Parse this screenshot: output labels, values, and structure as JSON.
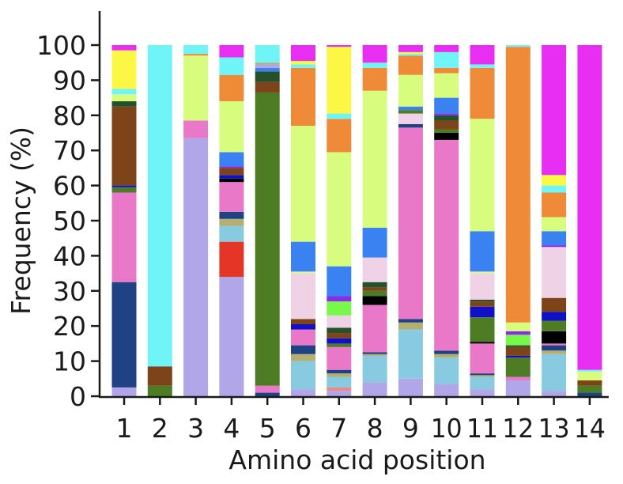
{
  "chart_data": {
    "type": "bar",
    "stacked": true,
    "title": "",
    "xlabel": "Amino acid position",
    "ylabel": "Frequency (%)",
    "ylim": [
      0,
      100
    ],
    "yticks": [
      0,
      10,
      20,
      30,
      40,
      50,
      60,
      70,
      80,
      90,
      100
    ],
    "grid": false,
    "legend": null,
    "categories": [
      "1",
      "2",
      "3",
      "4",
      "5",
      "6",
      "7",
      "8",
      "9",
      "10",
      "11",
      "12",
      "13",
      "14"
    ],
    "palette": {
      "lavender": "#b0a6e8",
      "lightblue": "#88cadf",
      "tan": "#b3ae72",
      "navy": "#1e4283",
      "salmon": "#e98a8a",
      "red": "#e53527",
      "pink": "#ea78c8",
      "black": "#000000",
      "green": "#4d7c24",
      "darkblue": "#1010c8",
      "brown": "#7c4418",
      "darkgreen": "#25502c",
      "purple": "#8a2be8",
      "palepink": "#efd2e6",
      "brightgreen": "#78f84a",
      "blue": "#3a82f2",
      "lime": "#d8fc7e",
      "orange": "#ee8a38",
      "cyan": "#6ff5f8",
      "yellow": "#fcf744",
      "magenta": "#e82ef2"
    },
    "bars": [
      {
        "position": "1",
        "segments": [
          {
            "color": "lavender",
            "value": 2.5
          },
          {
            "color": "navy",
            "value": 30
          },
          {
            "color": "pink",
            "value": 25.5
          },
          {
            "color": "green",
            "value": 1.5
          },
          {
            "color": "darkblue",
            "value": 0.5
          },
          {
            "color": "brown",
            "value": 22.5
          },
          {
            "color": "darkgreen",
            "value": 1.5
          },
          {
            "color": "lime",
            "value": 2
          },
          {
            "color": "cyan",
            "value": 1.5
          },
          {
            "color": "yellow",
            "value": 11
          },
          {
            "color": "magenta",
            "value": 1.5
          }
        ]
      },
      {
        "position": "2",
        "segments": [
          {
            "color": "green",
            "value": 3
          },
          {
            "color": "brown",
            "value": 5.5
          },
          {
            "color": "cyan",
            "value": 91.5
          }
        ]
      },
      {
        "position": "3",
        "segments": [
          {
            "color": "lavender",
            "value": 73.5
          },
          {
            "color": "pink",
            "value": 5
          },
          {
            "color": "lime",
            "value": 18.5
          },
          {
            "color": "orange",
            "value": 0.5
          },
          {
            "color": "cyan",
            "value": 2.5
          }
        ]
      },
      {
        "position": "4",
        "segments": [
          {
            "color": "lavender",
            "value": 34
          },
          {
            "color": "red",
            "value": 10
          },
          {
            "color": "lightblue",
            "value": 4.5
          },
          {
            "color": "tan",
            "value": 2
          },
          {
            "color": "navy",
            "value": 2
          },
          {
            "color": "pink",
            "value": 8.5
          },
          {
            "color": "black",
            "value": 1
          },
          {
            "color": "darkblue",
            "value": 1
          },
          {
            "color": "brown",
            "value": 2
          },
          {
            "color": "purple",
            "value": 0.5
          },
          {
            "color": "blue",
            "value": 4
          },
          {
            "color": "lime",
            "value": 14.5
          },
          {
            "color": "orange",
            "value": 7.5
          },
          {
            "color": "cyan",
            "value": 5
          },
          {
            "color": "magenta",
            "value": 3.5
          }
        ]
      },
      {
        "position": "5",
        "segments": [
          {
            "color": "navy",
            "value": 1
          },
          {
            "color": "pink",
            "value": 2
          },
          {
            "color": "green",
            "value": 83.5
          },
          {
            "color": "brown",
            "value": 3
          },
          {
            "color": "darkgreen",
            "value": 3
          },
          {
            "color": "blue",
            "value": 1
          },
          {
            "color": "lavender",
            "value": 1
          },
          {
            "color": "tan",
            "value": 0.5
          },
          {
            "color": "cyan",
            "value": 5
          }
        ]
      },
      {
        "position": "6",
        "segments": [
          {
            "color": "lavender",
            "value": 2
          },
          {
            "color": "lightblue",
            "value": 8
          },
          {
            "color": "tan",
            "value": 2
          },
          {
            "color": "navy",
            "value": 2.5
          },
          {
            "color": "pink",
            "value": 4.5
          },
          {
            "color": "darkblue",
            "value": 1.5
          },
          {
            "color": "brown",
            "value": 1.5
          },
          {
            "color": "palepink",
            "value": 13
          },
          {
            "color": "lime",
            "value": 0.5
          },
          {
            "color": "blue",
            "value": 8.5
          },
          {
            "color": "lime",
            "value": 33
          },
          {
            "color": "orange",
            "value": 16.5
          },
          {
            "color": "cyan",
            "value": 1
          },
          {
            "color": "yellow",
            "value": 1
          },
          {
            "color": "magenta",
            "value": 4.5
          }
        ]
      },
      {
        "position": "7",
        "segments": [
          {
            "color": "lavender",
            "value": 1.5
          },
          {
            "color": "salmon",
            "value": 1
          },
          {
            "color": "lightblue",
            "value": 3
          },
          {
            "color": "tan",
            "value": 1
          },
          {
            "color": "navy",
            "value": 1
          },
          {
            "color": "pink",
            "value": 6.5
          },
          {
            "color": "green",
            "value": 1
          },
          {
            "color": "darkblue",
            "value": 1.5
          },
          {
            "color": "brown",
            "value": 1.5
          },
          {
            "color": "darkgreen",
            "value": 1.5
          },
          {
            "color": "palepink",
            "value": 3.5
          },
          {
            "color": "brightgreen",
            "value": 4
          },
          {
            "color": "purple",
            "value": 1.5
          },
          {
            "color": "blue",
            "value": 8.5
          },
          {
            "color": "lime",
            "value": 32.5
          },
          {
            "color": "orange",
            "value": 9.5
          },
          {
            "color": "cyan",
            "value": 1.5
          },
          {
            "color": "yellow",
            "value": 19
          },
          {
            "color": "magenta",
            "value": 0.5
          }
        ]
      },
      {
        "position": "8",
        "segments": [
          {
            "color": "lavender",
            "value": 4
          },
          {
            "color": "lightblue",
            "value": 7.5
          },
          {
            "color": "tan",
            "value": 0.5
          },
          {
            "color": "navy",
            "value": 0.5
          },
          {
            "color": "pink",
            "value": 13.5
          },
          {
            "color": "black",
            "value": 2.5
          },
          {
            "color": "green",
            "value": 1.5
          },
          {
            "color": "brown",
            "value": 1
          },
          {
            "color": "darkgreen",
            "value": 1.5
          },
          {
            "color": "palepink",
            "value": 7
          },
          {
            "color": "blue",
            "value": 8.5
          },
          {
            "color": "lime",
            "value": 39
          },
          {
            "color": "orange",
            "value": 6.5
          },
          {
            "color": "cyan",
            "value": 1.5
          },
          {
            "color": "magenta",
            "value": 5
          }
        ]
      },
      {
        "position": "9",
        "segments": [
          {
            "color": "lavender",
            "value": 5
          },
          {
            "color": "lightblue",
            "value": 14
          },
          {
            "color": "tan",
            "value": 2
          },
          {
            "color": "navy",
            "value": 1
          },
          {
            "color": "pink",
            "value": 54.5
          },
          {
            "color": "navy",
            "value": 1
          },
          {
            "color": "palepink",
            "value": 3
          },
          {
            "color": "green",
            "value": 1
          },
          {
            "color": "blue",
            "value": 1
          },
          {
            "color": "lime",
            "value": 9
          },
          {
            "color": "orange",
            "value": 5.5
          },
          {
            "color": "cyan",
            "value": 0.5
          },
          {
            "color": "yellow",
            "value": 0.5
          },
          {
            "color": "magenta",
            "value": 2
          }
        ]
      },
      {
        "position": "10",
        "segments": [
          {
            "color": "lavender",
            "value": 3.5
          },
          {
            "color": "lightblue",
            "value": 7.5
          },
          {
            "color": "tan",
            "value": 1
          },
          {
            "color": "navy",
            "value": 1
          },
          {
            "color": "pink",
            "value": 60
          },
          {
            "color": "black",
            "value": 2
          },
          {
            "color": "green",
            "value": 1
          },
          {
            "color": "brown",
            "value": 2.5
          },
          {
            "color": "darkgreen",
            "value": 1.5
          },
          {
            "color": "purple",
            "value": 0.5
          },
          {
            "color": "blue",
            "value": 4.5
          },
          {
            "color": "lime",
            "value": 7
          },
          {
            "color": "orange",
            "value": 1.5
          },
          {
            "color": "cyan",
            "value": 4.5
          },
          {
            "color": "magenta",
            "value": 2
          }
        ]
      },
      {
        "position": "11",
        "segments": [
          {
            "color": "lavender",
            "value": 2
          },
          {
            "color": "lightblue",
            "value": 3.5
          },
          {
            "color": "tan",
            "value": 0.5
          },
          {
            "color": "navy",
            "value": 0.5
          },
          {
            "color": "pink",
            "value": 8.5
          },
          {
            "color": "black",
            "value": 0.5
          },
          {
            "color": "green",
            "value": 7
          },
          {
            "color": "darkblue",
            "value": 3
          },
          {
            "color": "brown",
            "value": 1.5
          },
          {
            "color": "darkgreen",
            "value": 0.5
          },
          {
            "color": "palepink",
            "value": 7.5
          },
          {
            "color": "lime",
            "value": 0.5
          },
          {
            "color": "blue",
            "value": 11.5
          },
          {
            "color": "lime",
            "value": 32
          },
          {
            "color": "orange",
            "value": 14.5
          },
          {
            "color": "cyan",
            "value": 1
          },
          {
            "color": "magenta",
            "value": 5.5
          }
        ]
      },
      {
        "position": "12",
        "segments": [
          {
            "color": "lavender",
            "value": 4.5
          },
          {
            "color": "pink",
            "value": 1
          },
          {
            "color": "green",
            "value": 5.5
          },
          {
            "color": "darkblue",
            "value": 0.5
          },
          {
            "color": "brown",
            "value": 2.5
          },
          {
            "color": "darkgreen",
            "value": 0.5
          },
          {
            "color": "brightgreen",
            "value": 3
          },
          {
            "color": "purple",
            "value": 1
          },
          {
            "color": "lime",
            "value": 2.5
          },
          {
            "color": "orange",
            "value": 78.5
          },
          {
            "color": "cyan",
            "value": 0.5
          }
        ]
      },
      {
        "position": "13",
        "segments": [
          {
            "color": "lavender",
            "value": 1.5
          },
          {
            "color": "lightblue",
            "value": 10.5
          },
          {
            "color": "tan",
            "value": 1
          },
          {
            "color": "navy",
            "value": 1.5
          },
          {
            "color": "pink",
            "value": 0.5
          },
          {
            "color": "black",
            "value": 3.5
          },
          {
            "color": "green",
            "value": 3
          },
          {
            "color": "darkblue",
            "value": 2.5
          },
          {
            "color": "brown",
            "value": 4
          },
          {
            "color": "palepink",
            "value": 14.5
          },
          {
            "color": "purple",
            "value": 0.5
          },
          {
            "color": "blue",
            "value": 4
          },
          {
            "color": "lime",
            "value": 4
          },
          {
            "color": "orange",
            "value": 7
          },
          {
            "color": "cyan",
            "value": 2
          },
          {
            "color": "yellow",
            "value": 3
          },
          {
            "color": "magenta",
            "value": 37
          }
        ]
      },
      {
        "position": "14",
        "segments": [
          {
            "color": "navy",
            "value": 1
          },
          {
            "color": "green",
            "value": 2
          },
          {
            "color": "brown",
            "value": 1.5
          },
          {
            "color": "lime",
            "value": 2.5
          },
          {
            "color": "cyan",
            "value": 0.5
          },
          {
            "color": "magenta",
            "value": 92.5
          }
        ]
      }
    ]
  }
}
